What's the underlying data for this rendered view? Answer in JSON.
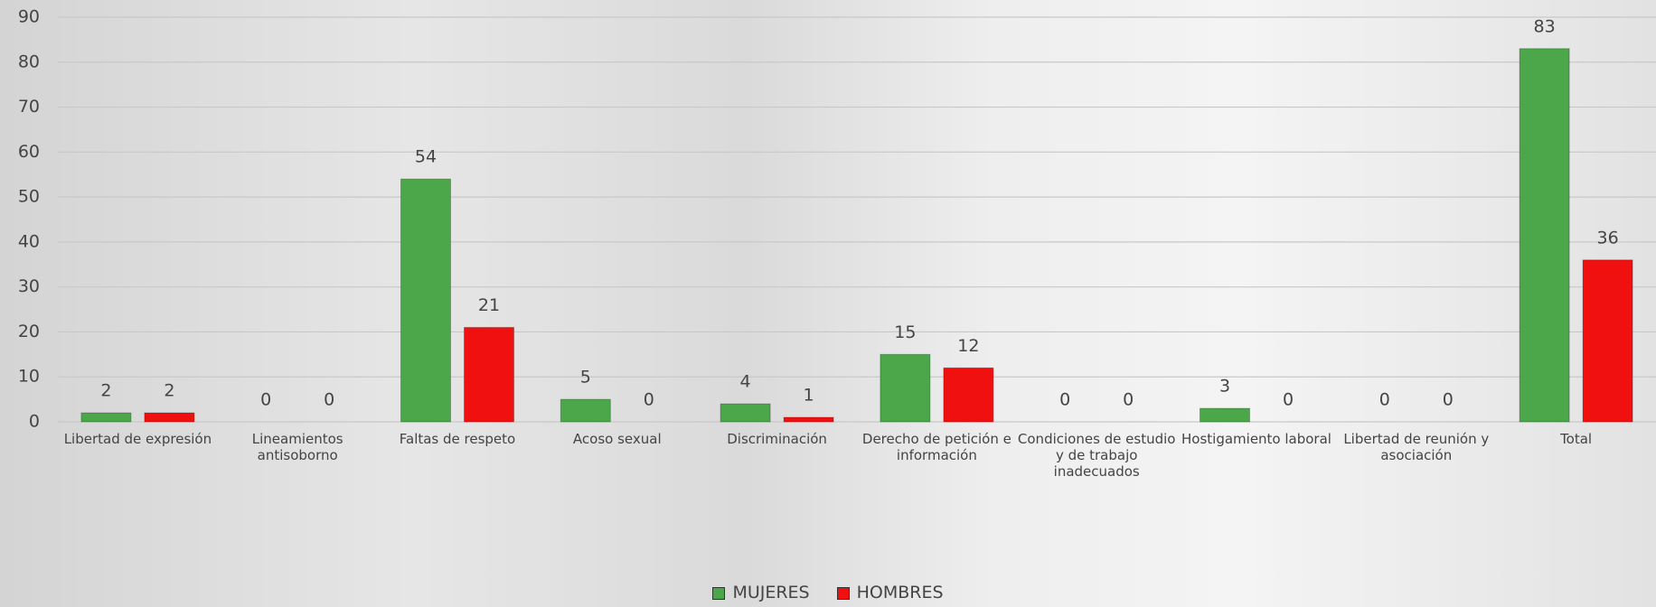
{
  "chart_data": {
    "type": "bar",
    "categories": [
      "Libertad de expresión",
      "Lineamientos antisoborno",
      "Faltas de respeto",
      "Acoso sexual",
      "Discriminación",
      "Derecho de petición e información",
      "Condiciones de estudio y de trabajo inadecuados",
      "Hostigamiento laboral",
      "Libertad de reunión y asociación",
      "Total"
    ],
    "series": [
      {
        "name": "MUJERES",
        "color": "#4ca64a",
        "values": [
          2,
          0,
          54,
          5,
          4,
          15,
          0,
          3,
          0,
          83
        ]
      },
      {
        "name": "HOMBRES",
        "color": "#f01010",
        "values": [
          2,
          0,
          21,
          0,
          1,
          12,
          0,
          0,
          0,
          36
        ]
      }
    ],
    "ylim": [
      0,
      90
    ],
    "yticks": [
      0,
      10,
      20,
      30,
      40,
      50,
      60,
      70,
      80,
      90
    ],
    "grid": true,
    "legend": "bottom"
  }
}
